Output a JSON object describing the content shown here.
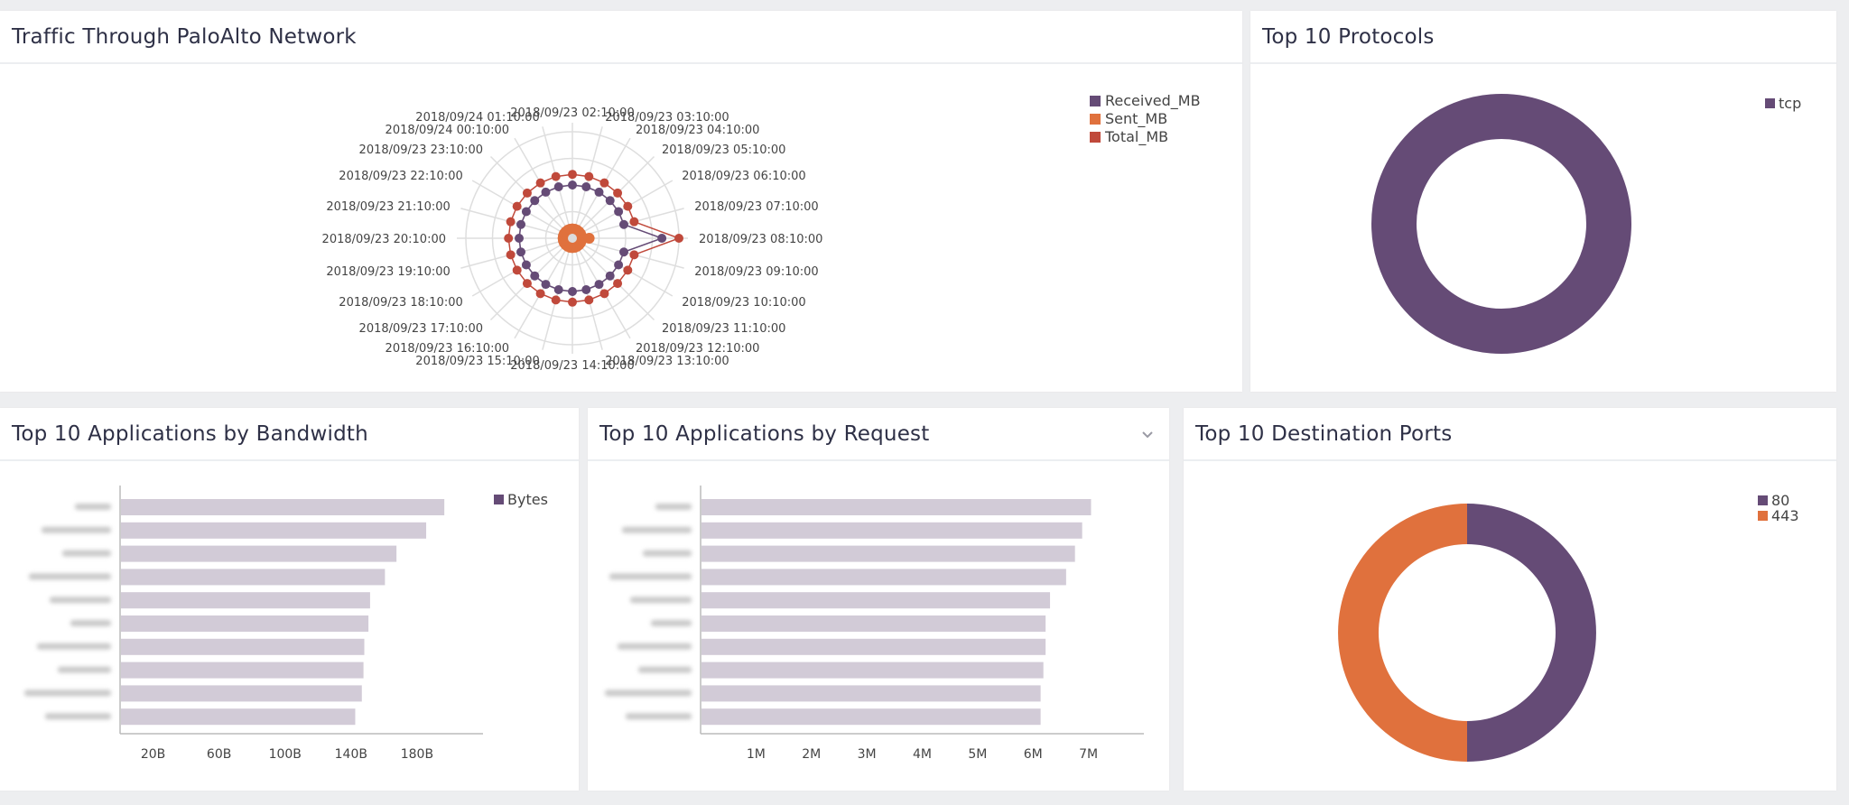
{
  "colors": {
    "purple": "#654b76",
    "orange": "#e0713d",
    "red": "#c0493b",
    "bar": "#d2cbd7",
    "grid": "#dedede"
  },
  "panels": {
    "traffic": {
      "title": "Traffic Through PaloAlto Network"
    },
    "protocols": {
      "title": "Top 10 Protocols"
    },
    "bandwidth": {
      "title": "Top 10 Applications by Bandwidth"
    },
    "requests": {
      "title": "Top 10 Applications by Request",
      "menu_icon": "chevron-down-icon"
    },
    "ports": {
      "title": "Top 10 Destination Ports"
    }
  },
  "chart_data": [
    {
      "id": "traffic",
      "type": "radar",
      "categories": [
        "2018/09/23 02:10:00",
        "2018/09/23 03:10:00",
        "2018/09/23 04:10:00",
        "2018/09/23 05:10:00",
        "2018/09/23 06:10:00",
        "2018/09/23 07:10:00",
        "2018/09/23 08:10:00",
        "2018/09/23 09:10:00",
        "2018/09/23 10:10:00",
        "2018/09/23 11:10:00",
        "2018/09/23 12:10:00",
        "2018/09/23 13:10:00",
        "2018/09/23 14:10:00",
        "2018/09/23 15:10:00",
        "2018/09/23 16:10:00",
        "2018/09/23 17:10:00",
        "2018/09/23 18:10:00",
        "2018/09/23 19:10:00",
        "2018/09/23 20:10:00",
        "2018/09/23 21:10:00",
        "2018/09/23 22:10:00",
        "2018/09/23 23:10:00",
        "2018/09/24 00:10:00",
        "2018/09/24 01:10:00"
      ],
      "series": [
        {
          "name": "Received_MB",
          "color": "#654b76",
          "values": [
            2,
            2,
            2,
            2,
            2,
            2,
            3.36,
            2,
            2,
            2,
            2,
            2,
            2,
            2,
            2,
            2,
            2,
            2,
            2,
            2,
            2,
            2,
            2,
            2
          ]
        },
        {
          "name": "Sent_MB",
          "color": "#e0713d",
          "values": [
            0.35,
            0.35,
            0.35,
            0.35,
            0.35,
            0.35,
            0.63,
            0.35,
            0.35,
            0.35,
            0.35,
            0.35,
            0.35,
            0.35,
            0.35,
            0.35,
            0.35,
            0.35,
            0.35,
            0.35,
            0.35,
            0.35,
            0.35,
            0.35
          ]
        },
        {
          "name": "Total_MB",
          "color": "#c0493b",
          "values": [
            2.4,
            2.4,
            2.4,
            2.4,
            2.4,
            2.4,
            4,
            2.4,
            2.4,
            2.4,
            2.4,
            2.4,
            2.4,
            2.4,
            2.4,
            2.4,
            2.4,
            2.4,
            2.4,
            2.4,
            2.4,
            2.4,
            2.4,
            2.4
          ]
        }
      ],
      "rlim": [
        0,
        4
      ],
      "grid": true,
      "legend": "top-right"
    },
    {
      "id": "protocols",
      "type": "pie",
      "donut": true,
      "labels": [
        "tcp"
      ],
      "values": [
        100
      ],
      "colors": [
        "#654b76"
      ],
      "legend": "top-right"
    },
    {
      "id": "bandwidth",
      "type": "bar",
      "orientation": "horizontal",
      "series": [
        {
          "name": "Bytes",
          "color": "#d2cbd7",
          "legend_color": "#654b76",
          "values": [
            196,
            185,
            167,
            160,
            151,
            150,
            147.5,
            147,
            146,
            142
          ]
        }
      ],
      "xticks": [
        "20B",
        "60B",
        "100B",
        "140B",
        "180B"
      ],
      "xtick_values": [
        20,
        60,
        100,
        140,
        180
      ],
      "xlim": [
        0,
        220
      ],
      "category_labels_blurred": true,
      "legend": "top-right"
    },
    {
      "id": "requests",
      "type": "bar",
      "orientation": "horizontal",
      "series": [
        {
          "color": "#d2cbd7",
          "values": [
            7.03,
            6.87,
            6.74,
            6.58,
            6.29,
            6.21,
            6.21,
            6.17,
            6.12,
            6.12
          ]
        }
      ],
      "xticks": [
        "1M",
        "2M",
        "3M",
        "4M",
        "5M",
        "6M",
        "7M"
      ],
      "xtick_values": [
        1,
        2,
        3,
        4,
        5,
        6,
        7
      ],
      "xlim": [
        0,
        8
      ],
      "category_labels_blurred": true
    },
    {
      "id": "ports",
      "type": "pie",
      "donut": true,
      "labels": [
        "80",
        "443"
      ],
      "values": [
        50,
        50
      ],
      "colors": [
        "#654b76",
        "#e0713d"
      ],
      "legend": "top-right"
    }
  ]
}
